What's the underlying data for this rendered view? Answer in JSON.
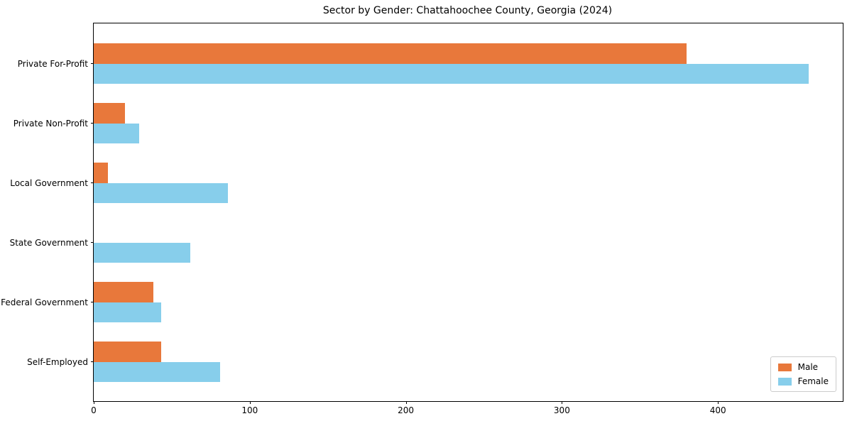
{
  "chart_data": {
    "type": "bar",
    "orientation": "horizontal",
    "title": "Sector by Gender: Chattahoochee County, Georgia (2024)",
    "xlabel": "",
    "ylabel": "",
    "categories": [
      "Private For-Profit",
      "Private Non-Profit",
      "Local Government",
      "State Government",
      "Federal Government",
      "Self-Employed"
    ],
    "series": [
      {
        "name": "Male",
        "color": "#e8783b",
        "values": [
          380,
          20,
          9,
          0,
          38,
          43
        ]
      },
      {
        "name": "Female",
        "color": "#87ceeb",
        "values": [
          458,
          29,
          86,
          62,
          43,
          81
        ]
      }
    ],
    "x_ticks": [
      0,
      100,
      200,
      300,
      400
    ],
    "xlim": [
      0,
      480
    ],
    "grid": false,
    "legend_position": "lower right",
    "background_color": "#ffffff",
    "spine_color": "#000000"
  }
}
